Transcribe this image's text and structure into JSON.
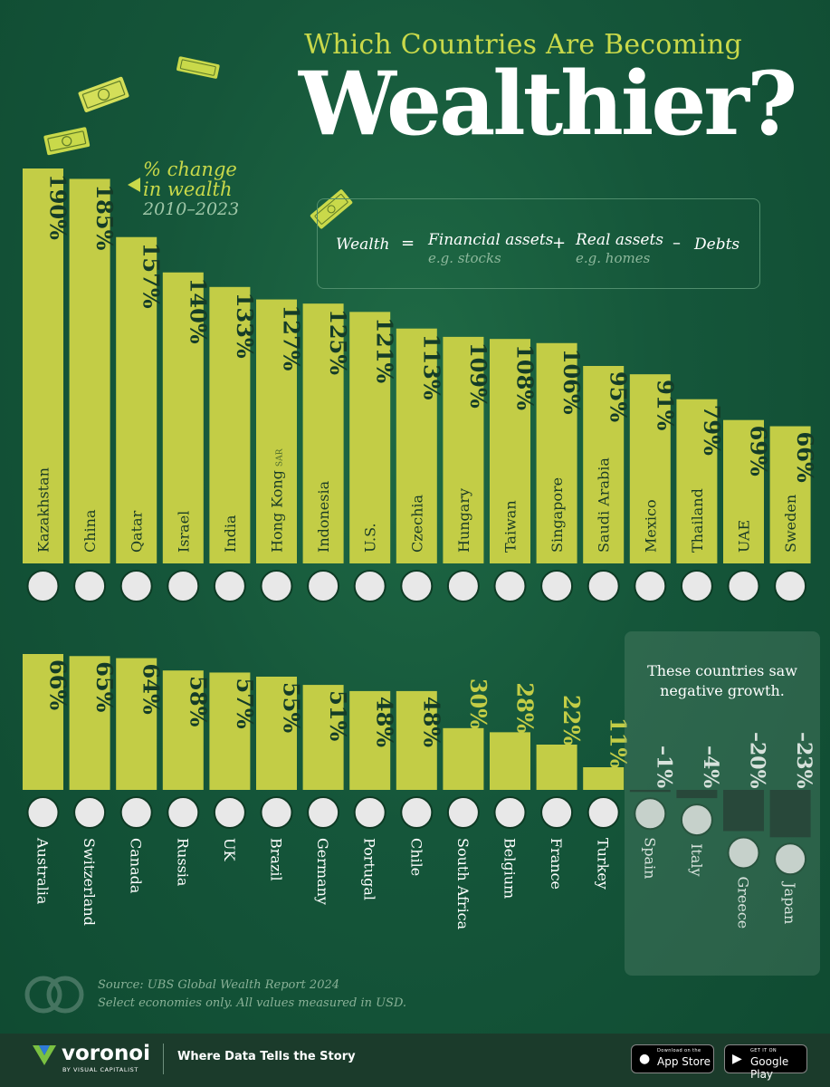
{
  "header": {
    "subtitle": "Which Countries Are Becoming",
    "title": "Wealthier?"
  },
  "legend_note": {
    "line1": "% change",
    "line2": "in wealth",
    "years": "2010–2023"
  },
  "formula": {
    "wealth": "Wealth",
    "equals": "=",
    "financial": "Financial assets",
    "financial_example": "e.g. stocks",
    "plus": "+",
    "real": "Real assets",
    "real_example": "e.g. homes",
    "minus": "–",
    "debts": "Debts"
  },
  "negative_note": {
    "line1": "These countries saw",
    "line2": "negative growth."
  },
  "source": {
    "line1": "Source: UBS Global Wealth Report 2024",
    "line2": "Select economies only. All values measured in USD."
  },
  "footer": {
    "brand": "voronoi",
    "brand_by": "BY VISUAL CAPITALIST",
    "tagline": "Where Data Tells the Story",
    "app_store_small": "Download on the",
    "app_store_big": "App Store",
    "google_small": "GET IT ON",
    "google_big": "Google Play"
  },
  "colors": {
    "bar": "#c3cd46",
    "negative_bar": "#0d2a1f",
    "value_text": "#143c28",
    "accent": "#c9d94a"
  },
  "chart_data": {
    "type": "bar",
    "unit": "%",
    "rows": [
      {
        "ymax": 190,
        "categories": [
          "Kazakhstan",
          "China",
          "Qatar",
          "Israel",
          "India",
          "Hong Kong",
          "Indonesia",
          "U.S.",
          "Czechia",
          "Hungary",
          "Taiwan",
          "Singapore",
          "Saudi Arabia",
          "Mexico",
          "Thailand",
          "UAE",
          "Sweden"
        ],
        "values": [
          190,
          185,
          157,
          140,
          133,
          127,
          125,
          121,
          113,
          109,
          108,
          106,
          95,
          91,
          79,
          69,
          66
        ],
        "labels": [
          "190%",
          "185%",
          "157%",
          "140%",
          "133%",
          "127%",
          "125%",
          "121%",
          "113%",
          "109%",
          "108%",
          "106%",
          "95%",
          "91%",
          "79%",
          "69%",
          "66%"
        ],
        "category_suffix": {
          "Hong Kong": "SAR"
        }
      },
      {
        "ymax": 66,
        "categories": [
          "Australia",
          "Switzerland",
          "Canada",
          "Russia",
          "UK",
          "Brazil",
          "Germany",
          "Portugal",
          "Chile",
          "South Africa",
          "Belgium",
          "France",
          "Turkey",
          "Spain",
          "Italy",
          "Greece",
          "Japan"
        ],
        "values": [
          66,
          65,
          64,
          58,
          57,
          55,
          51,
          48,
          48,
          30,
          28,
          22,
          11,
          -1,
          -4,
          -20,
          -23
        ],
        "labels": [
          "66%",
          "65%",
          "64%",
          "58%",
          "57%",
          "55%",
          "51%",
          "48%",
          "48%",
          "30%",
          "28%",
          "22%",
          "11%",
          "–1%",
          "–4%",
          "–20%",
          "–23%"
        ]
      }
    ]
  }
}
